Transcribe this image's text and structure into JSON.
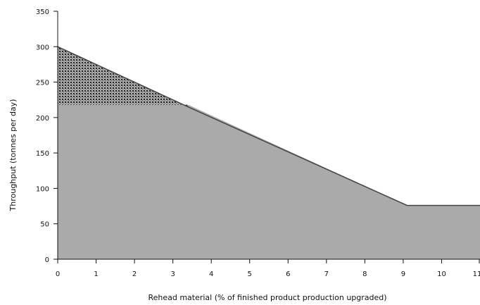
{
  "chart_data": {
    "type": "area",
    "title": "",
    "xlabel": "Rehead material (% of finished product production upgraded)",
    "ylabel": "Throughput (tonnes per day)",
    "xlim": [
      0,
      11
    ],
    "ylim": [
      0,
      350
    ],
    "x_ticks": [
      0,
      1,
      2,
      3,
      4,
      5,
      6,
      7,
      8,
      9,
      10,
      11
    ],
    "x_tick_labels": [
      "0",
      "1",
      "2",
      "3",
      "4",
      "5",
      "6",
      "7",
      "8",
      "9",
      "10",
      "11"
    ],
    "y_ticks": [
      0,
      50,
      100,
      150,
      200,
      250,
      300,
      350
    ],
    "y_tick_labels": [
      "0",
      "50",
      "100",
      "150",
      "200",
      "250",
      "300",
      "350"
    ],
    "grid": false,
    "series": [
      {
        "fill": "#aaaaaa",
        "x": [
          0,
          3.4,
          9.1,
          11
        ],
        "y": [
          218,
          218,
          76,
          76
        ]
      },
      {
        "fill": "#333333",
        "pattern": "stipple",
        "x": [
          0,
          3.4
        ],
        "y_top": [
          300,
          215
        ],
        "y_bottom": [
          218,
          218
        ]
      }
    ],
    "upper_boundary": {
      "x": [
        0,
        3.4,
        9.1,
        11
      ],
      "y": [
        300,
        215,
        76,
        76
      ]
    }
  }
}
